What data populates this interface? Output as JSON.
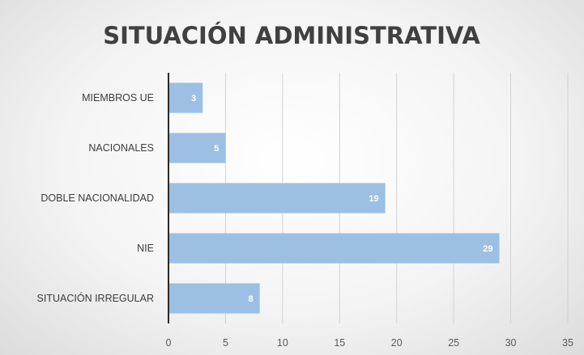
{
  "chart_data": {
    "type": "bar",
    "orientation": "horizontal",
    "title": "SITUACIÓN ADMINISTRATIVA",
    "categories": [
      "MIEMBROS UE",
      "NACIONALES",
      "DOBLE NACIONALIDAD",
      "NIE",
      "SITUACIÓN IRREGULAR"
    ],
    "values": [
      3,
      5,
      19,
      29,
      8
    ],
    "xlim": [
      0,
      35
    ],
    "xticks": [
      0,
      5,
      10,
      15,
      20,
      25,
      30,
      35
    ],
    "grid": true,
    "data_labels": true,
    "bar_color": "#9dbfe3"
  }
}
